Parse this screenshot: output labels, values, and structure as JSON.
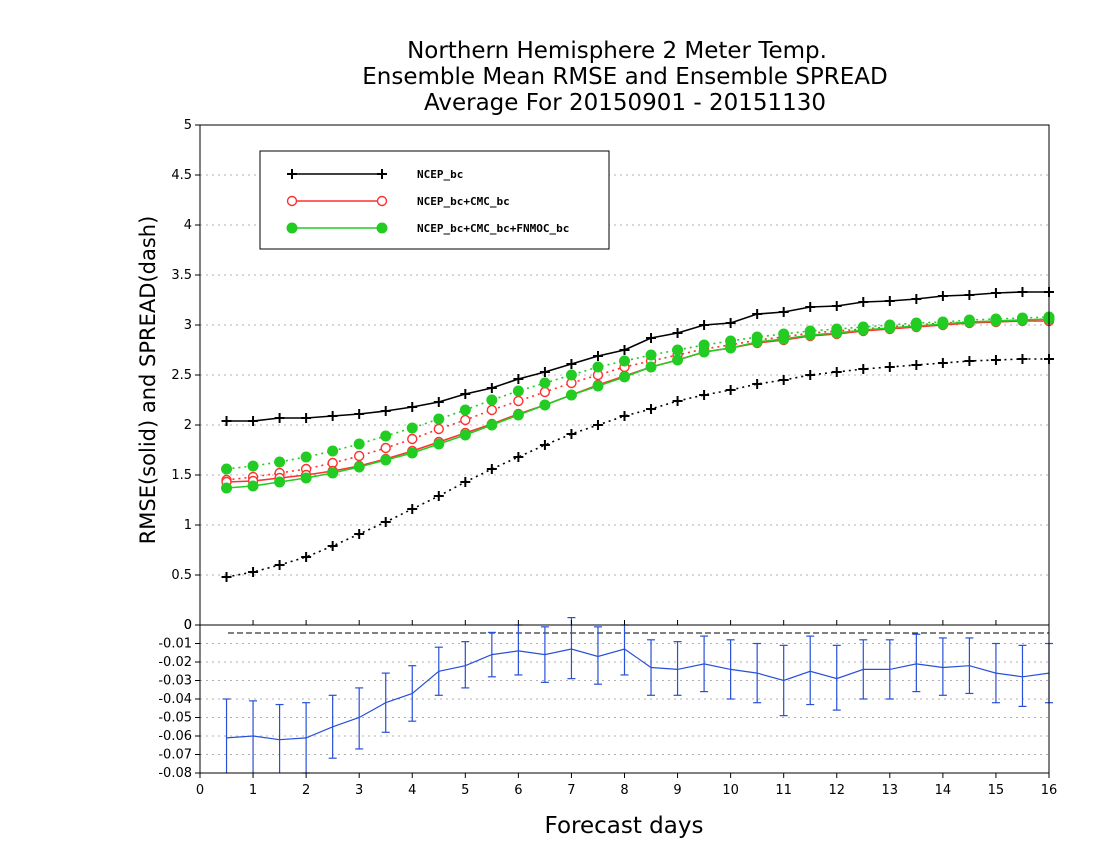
{
  "title_lines": [
    "Northern Hemisphere 2 Meter Temp.",
    "Ensemble Mean RMSE and Ensemble SPREAD",
    "Average For 20150901 - 20151130"
  ],
  "colors": {
    "ncep": "#000000",
    "ncep_cmc": "#ff3030",
    "ncep_cmc_fnmoc": "#22cc22",
    "diff": "#2850d8",
    "grid": "#b0b0b0"
  },
  "chart_data": [
    {
      "type": "line",
      "title": "Northern Hemisphere 2 Meter Temp. Ensemble Mean RMSE and Ensemble SPREAD Average For 20150901 - 20151130",
      "xlabel": "Forecast days",
      "ylabel": "RMSE(solid) and SPREAD(dash)",
      "xlim": [
        0,
        16
      ],
      "ylim": [
        0,
        5
      ],
      "yticks": [
        "0",
        "0.5",
        "1",
        "1.5",
        "2",
        "2.5",
        "3",
        "3.5",
        "4",
        "4.5",
        "5"
      ],
      "grid": true,
      "legend_position": "top-left",
      "x": [
        0.5,
        1,
        1.5,
        2,
        2.5,
        3,
        3.5,
        4,
        4.5,
        5,
        5.5,
        6,
        6.5,
        7,
        7.5,
        8,
        8.5,
        9,
        9.5,
        10,
        10.5,
        11,
        11.5,
        12,
        12.5,
        13,
        13.5,
        14,
        14.5,
        15,
        15.5,
        16
      ],
      "series": [
        {
          "name": "NCEP_bc",
          "kind": "rmse",
          "marker": "plus",
          "color": "#000000",
          "values": [
            2.04,
            2.04,
            2.07,
            2.07,
            2.09,
            2.11,
            2.14,
            2.18,
            2.23,
            2.31,
            2.37,
            2.46,
            2.53,
            2.61,
            2.69,
            2.75,
            2.87,
            2.92,
            3.0,
            3.02,
            3.11,
            3.13,
            3.18,
            3.19,
            3.23,
            3.24,
            3.26,
            3.29,
            3.3,
            3.32,
            3.33,
            3.33
          ]
        },
        {
          "name": "NCEP_bc",
          "kind": "spread",
          "marker": "plus",
          "color": "#000000",
          "values": [
            0.48,
            0.53,
            0.6,
            0.68,
            0.79,
            0.91,
            1.03,
            1.16,
            1.29,
            1.43,
            1.56,
            1.68,
            1.8,
            1.91,
            2.0,
            2.09,
            2.16,
            2.24,
            2.3,
            2.35,
            2.41,
            2.45,
            2.5,
            2.53,
            2.56,
            2.58,
            2.6,
            2.62,
            2.64,
            2.65,
            2.66,
            2.66
          ]
        },
        {
          "name": "NCEP_bc+CMC_bc",
          "kind": "rmse",
          "marker": "open-circle",
          "color": "#ff3030",
          "values": [
            1.43,
            1.44,
            1.47,
            1.5,
            1.54,
            1.59,
            1.66,
            1.74,
            1.83,
            1.92,
            2.01,
            2.11,
            2.2,
            2.3,
            2.4,
            2.49,
            2.58,
            2.65,
            2.73,
            2.77,
            2.82,
            2.85,
            2.89,
            2.91,
            2.94,
            2.96,
            2.98,
            3.0,
            3.02,
            3.03,
            3.04,
            3.04
          ]
        },
        {
          "name": "NCEP_bc+CMC_bc",
          "kind": "spread",
          "marker": "open-circle",
          "color": "#ff3030",
          "values": [
            1.45,
            1.48,
            1.52,
            1.56,
            1.62,
            1.69,
            1.77,
            1.86,
            1.96,
            2.05,
            2.15,
            2.24,
            2.33,
            2.42,
            2.5,
            2.58,
            2.64,
            2.7,
            2.76,
            2.8,
            2.85,
            2.88,
            2.92,
            2.94,
            2.96,
            2.98,
            3.0,
            3.02,
            3.03,
            3.04,
            3.05,
            3.06
          ]
        },
        {
          "name": "NCEP_bc+CMC_bc+FNMOC_bc",
          "kind": "rmse",
          "marker": "filled-circle",
          "color": "#22cc22",
          "values": [
            1.37,
            1.39,
            1.43,
            1.47,
            1.52,
            1.58,
            1.65,
            1.72,
            1.81,
            1.9,
            2.0,
            2.1,
            2.2,
            2.3,
            2.39,
            2.48,
            2.58,
            2.65,
            2.73,
            2.77,
            2.83,
            2.86,
            2.9,
            2.92,
            2.95,
            2.97,
            2.99,
            3.01,
            3.03,
            3.04,
            3.05,
            3.06
          ]
        },
        {
          "name": "NCEP_bc+CMC_bc+FNMOC_bc",
          "kind": "spread",
          "marker": "filled-circle",
          "color": "#22cc22",
          "values": [
            1.56,
            1.59,
            1.63,
            1.68,
            1.74,
            1.81,
            1.89,
            1.97,
            2.06,
            2.15,
            2.25,
            2.34,
            2.42,
            2.5,
            2.58,
            2.64,
            2.7,
            2.75,
            2.8,
            2.84,
            2.88,
            2.91,
            2.94,
            2.96,
            2.98,
            3.0,
            3.02,
            3.03,
            3.05,
            3.06,
            3.07,
            3.08
          ]
        }
      ]
    },
    {
      "type": "line",
      "title": "",
      "xlabel": "Forecast days",
      "ylabel": "",
      "xlim": [
        0,
        16
      ],
      "ylim": [
        -0.08,
        0
      ],
      "xticks": [
        "0",
        "1",
        "2",
        "3",
        "4",
        "5",
        "6",
        "7",
        "8",
        "9",
        "10",
        "11",
        "12",
        "13",
        "14",
        "15",
        "16"
      ],
      "yticks": [
        "0",
        "-0.01",
        "-0.02",
        "-0.03",
        "-0.04",
        "-0.05",
        "-0.06",
        "-0.07",
        "-0.08"
      ],
      "grid": true,
      "error_bars": true,
      "x": [
        0.5,
        1,
        1.5,
        2,
        2.5,
        3,
        3.5,
        4,
        4.5,
        5,
        5.5,
        6,
        6.5,
        7,
        7.5,
        8,
        8.5,
        9,
        9.5,
        10,
        10.5,
        11,
        11.5,
        12,
        12.5,
        13,
        13.5,
        14,
        14.5,
        15,
        15.5,
        16
      ],
      "series": [
        {
          "color": "#2850d8",
          "values": [
            -0.061,
            -0.06,
            -0.062,
            -0.061,
            -0.055,
            -0.05,
            -0.042,
            -0.037,
            -0.025,
            -0.022,
            -0.016,
            -0.014,
            -0.016,
            -0.013,
            -0.017,
            -0.013,
            -0.023,
            -0.024,
            -0.021,
            -0.024,
            -0.026,
            -0.03,
            -0.025,
            -0.029,
            -0.024,
            -0.024,
            -0.021,
            -0.023,
            -0.022,
            -0.026,
            -0.028,
            -0.026
          ],
          "err_low": [
            -0.081,
            -0.081,
            -0.081,
            -0.08,
            -0.072,
            -0.067,
            -0.058,
            -0.052,
            -0.038,
            -0.034,
            -0.028,
            -0.027,
            -0.031,
            -0.029,
            -0.032,
            -0.027,
            -0.038,
            -0.038,
            -0.036,
            -0.04,
            -0.042,
            -0.049,
            -0.043,
            -0.046,
            -0.04,
            -0.04,
            -0.036,
            -0.038,
            -0.037,
            -0.042,
            -0.044,
            -0.042
          ],
          "err_high": [
            -0.04,
            -0.041,
            -0.043,
            -0.042,
            -0.038,
            -0.034,
            -0.026,
            -0.022,
            -0.012,
            -0.009,
            -0.004,
            0.0,
            -0.001,
            0.004,
            -0.001,
            0.0,
            -0.008,
            -0.009,
            -0.006,
            -0.008,
            -0.01,
            -0.011,
            -0.006,
            -0.011,
            -0.008,
            -0.008,
            -0.005,
            -0.007,
            -0.007,
            -0.01,
            -0.011,
            -0.01
          ]
        }
      ]
    }
  ]
}
